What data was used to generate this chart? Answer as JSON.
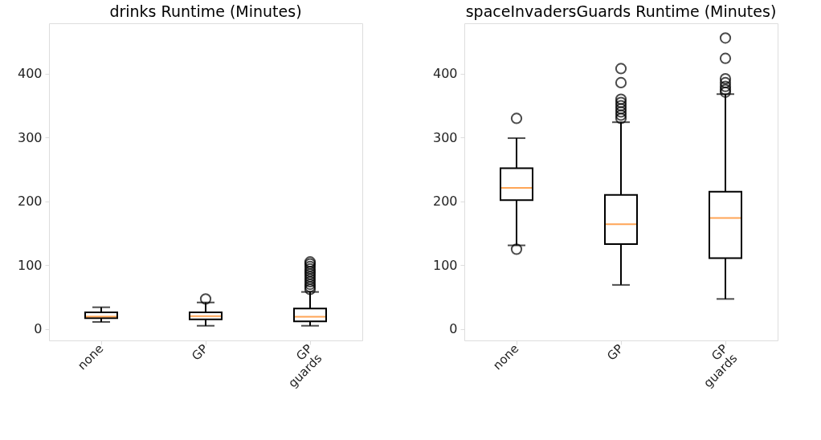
{
  "chart_data": [
    {
      "type": "box",
      "title": "drinks Runtime (Minutes)",
      "categories": [
        "none",
        "GP",
        "GP\nguards"
      ],
      "ylim": [
        -18,
        479
      ],
      "yticks": [
        0,
        100,
        200,
        300,
        400
      ],
      "grid": false,
      "series": [
        {
          "color": "#000000",
          "boxes": [
            {
              "low": 11,
              "q1": 17,
              "median": 19.5,
              "q3": 26,
              "high": 34
            },
            {
              "low": 5,
              "q1": 15,
              "median": 20,
              "q3": 26,
              "high": 41.5,
              "outliers": [
                47
              ]
            },
            {
              "low": 5,
              "q1": 12,
              "median": 19,
              "q3": 32,
              "high": 58,
              "outliers": [
                62,
                66,
                70,
                74,
                78,
                82,
                86,
                90,
                94,
                98,
                102,
                105
              ]
            }
          ]
        }
      ]
    },
    {
      "type": "box",
      "title": "spaceInvadersGuards Runtime (Minutes)",
      "categories": [
        "none",
        "GP",
        "GP\nguards"
      ],
      "ylim": [
        -18,
        479
      ],
      "yticks": [
        0,
        100,
        200,
        300,
        400
      ],
      "grid": false,
      "series": [
        {
          "color": "#000000",
          "boxes": [
            {
              "low": 131,
              "q1": 202,
              "median": 221,
              "q3": 252,
              "high": 299,
              "outliers": [
                125,
                330
              ]
            },
            {
              "low": 69,
              "q1": 133,
              "median": 164,
              "q3": 210,
              "high": 324,
              "outliers": [
                330,
                335,
                340,
                345,
                350,
                355,
                360,
                386,
                408
              ]
            },
            {
              "low": 47,
              "q1": 111,
              "median": 174,
              "q3": 215,
              "high": 368,
              "outliers": [
                371,
                375,
                380,
                386,
                392,
                424,
                456
              ]
            }
          ]
        }
      ]
    }
  ]
}
